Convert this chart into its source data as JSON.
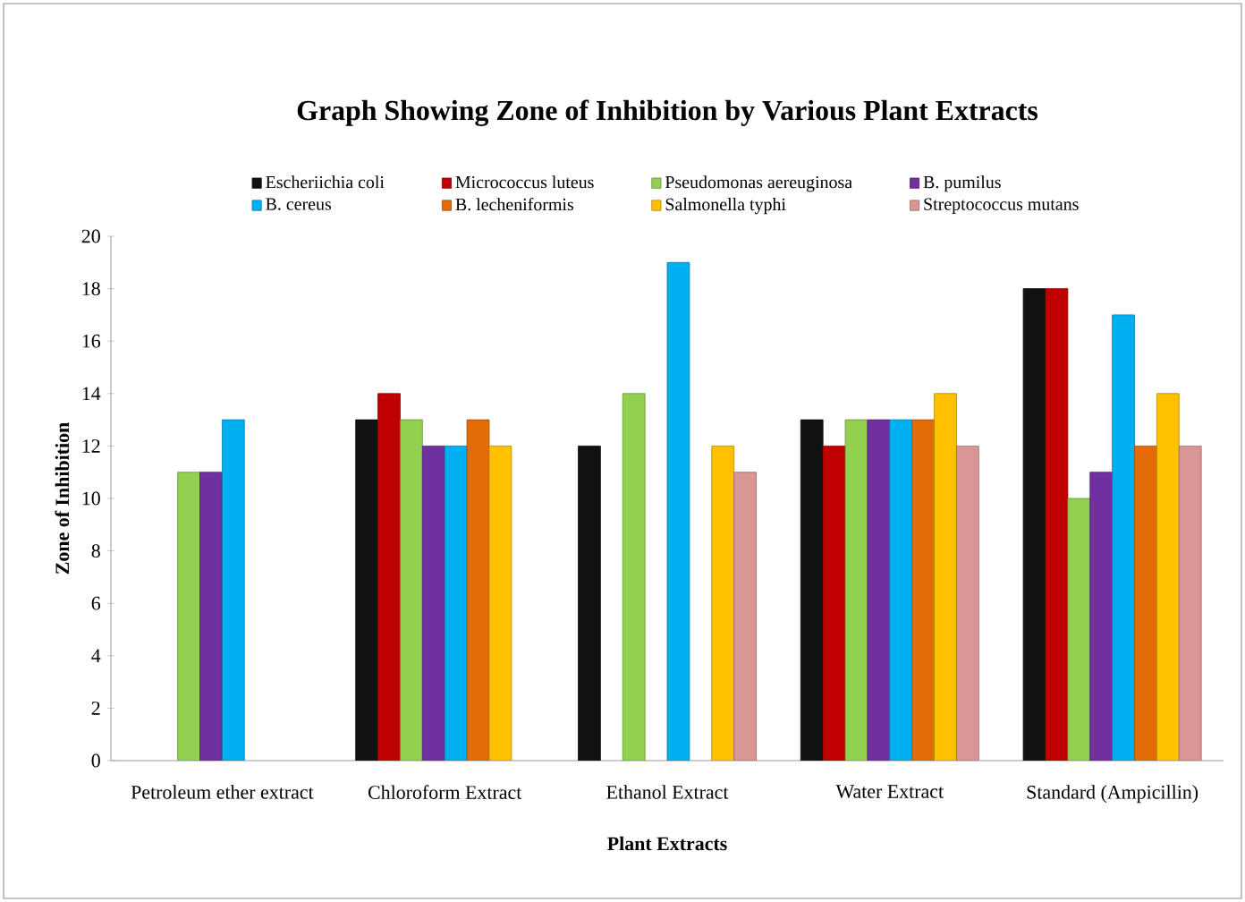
{
  "chart_data": {
    "type": "bar",
    "title": "Graph Showing Zone of Inhibition by Various Plant Extracts",
    "xlabel": "Plant Extracts",
    "ylabel": "Zone of Inhibition",
    "categories": [
      "Petroleum ether extract",
      "Chloroform Extract",
      "Ethanol Extract",
      "Water Extract",
      "Standard  (Ampicillin)"
    ],
    "series": [
      {
        "name": "Escheriichia coli",
        "color": "#111111",
        "values": [
          null,
          13,
          12,
          13,
          18
        ]
      },
      {
        "name": "Micrococcus luteus",
        "color": "#c00000",
        "values": [
          null,
          14,
          null,
          12,
          18
        ]
      },
      {
        "name": "Pseudomonas aereuginosa",
        "color": "#92d050",
        "values": [
          11,
          13,
          14,
          13,
          10
        ]
      },
      {
        "name": "B. pumilus",
        "color": "#7030a0",
        "values": [
          11,
          12,
          null,
          13,
          11
        ]
      },
      {
        "name": "B. cereus",
        "color": "#00b0f0",
        "values": [
          13,
          12,
          19,
          13,
          17
        ]
      },
      {
        "name": "B. lecheniformis",
        "color": "#e36c09",
        "values": [
          null,
          13,
          null,
          13,
          12
        ]
      },
      {
        "name": "Salmonella typhi",
        "color": "#ffc000",
        "values": [
          null,
          12,
          12,
          14,
          14
        ]
      },
      {
        "name": "Streptococcus mutans",
        "color": "#d99694",
        "values": [
          null,
          null,
          11,
          12,
          12
        ]
      }
    ],
    "ylim": [
      0,
      20
    ],
    "yticks": [
      0,
      2,
      4,
      6,
      8,
      10,
      12,
      14,
      16,
      18,
      20
    ],
    "grid": false,
    "legend": "top"
  }
}
